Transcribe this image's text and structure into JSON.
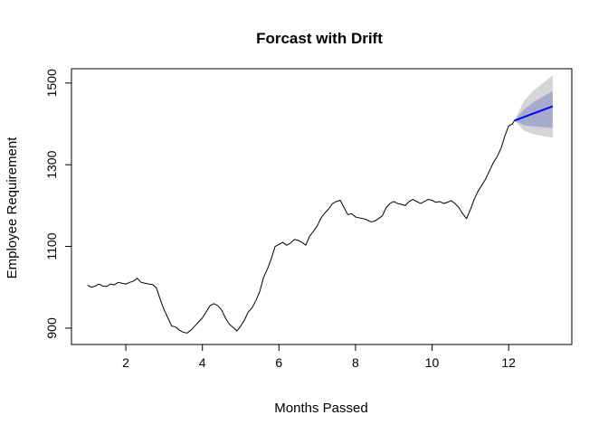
{
  "chart_data": {
    "type": "line",
    "title": "Forcast with Drift",
    "xlabel": "Months Passed",
    "ylabel": "Employee Requirement",
    "xlim": [
      0.58,
      13.65
    ],
    "ylim": [
      860,
      1535
    ],
    "x_ticks": [
      2,
      4,
      6,
      8,
      10,
      12
    ],
    "y_ticks": [
      900,
      1100,
      1300,
      1500
    ],
    "grid": false,
    "colors": {
      "history": "#000000",
      "forecast": "#0000ff",
      "band80": "#a6abcc",
      "band95": "#d5d5d8"
    },
    "series": [
      {
        "role": "history",
        "points": [
          [
            1.0,
            1005
          ],
          [
            1.1,
            1000
          ],
          [
            1.2,
            1003
          ],
          [
            1.3,
            1008
          ],
          [
            1.4,
            1003
          ],
          [
            1.5,
            1002
          ],
          [
            1.6,
            1008
          ],
          [
            1.7,
            1006
          ],
          [
            1.8,
            1012
          ],
          [
            1.9,
            1010
          ],
          [
            2.0,
            1008
          ],
          [
            2.1,
            1012
          ],
          [
            2.2,
            1015
          ],
          [
            2.3,
            1022
          ],
          [
            2.4,
            1012
          ],
          [
            2.5,
            1010
          ],
          [
            2.6,
            1008
          ],
          [
            2.7,
            1007
          ],
          [
            2.8,
            998
          ],
          [
            2.9,
            970
          ],
          [
            3.0,
            945
          ],
          [
            3.1,
            925
          ],
          [
            3.2,
            905
          ],
          [
            3.3,
            903
          ],
          [
            3.4,
            895
          ],
          [
            3.5,
            890
          ],
          [
            3.6,
            888
          ],
          [
            3.7,
            895
          ],
          [
            3.8,
            905
          ],
          [
            3.9,
            915
          ],
          [
            4.0,
            925
          ],
          [
            4.1,
            940
          ],
          [
            4.2,
            955
          ],
          [
            4.3,
            960
          ],
          [
            4.4,
            955
          ],
          [
            4.5,
            945
          ],
          [
            4.6,
            925
          ],
          [
            4.7,
            910
          ],
          [
            4.8,
            902
          ],
          [
            4.9,
            893
          ],
          [
            5.0,
            905
          ],
          [
            5.1,
            920
          ],
          [
            5.2,
            940
          ],
          [
            5.3,
            950
          ],
          [
            5.4,
            968
          ],
          [
            5.5,
            990
          ],
          [
            5.6,
            1025
          ],
          [
            5.7,
            1045
          ],
          [
            5.8,
            1070
          ],
          [
            5.9,
            1100
          ],
          [
            6.0,
            1105
          ],
          [
            6.1,
            1110
          ],
          [
            6.2,
            1103
          ],
          [
            6.3,
            1108
          ],
          [
            6.4,
            1117
          ],
          [
            6.5,
            1115
          ],
          [
            6.6,
            1110
          ],
          [
            6.7,
            1103
          ],
          [
            6.8,
            1125
          ],
          [
            6.9,
            1137
          ],
          [
            7.0,
            1150
          ],
          [
            7.1,
            1170
          ],
          [
            7.2,
            1182
          ],
          [
            7.3,
            1192
          ],
          [
            7.4,
            1205
          ],
          [
            7.5,
            1210
          ],
          [
            7.6,
            1213
          ],
          [
            7.7,
            1195
          ],
          [
            7.8,
            1178
          ],
          [
            7.9,
            1180
          ],
          [
            8.0,
            1172
          ],
          [
            8.1,
            1170
          ],
          [
            8.2,
            1168
          ],
          [
            8.3,
            1165
          ],
          [
            8.4,
            1160
          ],
          [
            8.5,
            1162
          ],
          [
            8.6,
            1168
          ],
          [
            8.7,
            1175
          ],
          [
            8.8,
            1195
          ],
          [
            8.9,
            1205
          ],
          [
            9.0,
            1210
          ],
          [
            9.1,
            1205
          ],
          [
            9.2,
            1203
          ],
          [
            9.3,
            1200
          ],
          [
            9.4,
            1210
          ],
          [
            9.5,
            1215
          ],
          [
            9.6,
            1210
          ],
          [
            9.7,
            1205
          ],
          [
            9.8,
            1210
          ],
          [
            9.9,
            1215
          ],
          [
            10.0,
            1213
          ],
          [
            10.1,
            1208
          ],
          [
            10.2,
            1210
          ],
          [
            10.3,
            1205
          ],
          [
            10.4,
            1208
          ],
          [
            10.5,
            1212
          ],
          [
            10.6,
            1205
          ],
          [
            10.7,
            1195
          ],
          [
            10.8,
            1180
          ],
          [
            10.9,
            1168
          ],
          [
            11.0,
            1190
          ],
          [
            11.1,
            1215
          ],
          [
            11.2,
            1235
          ],
          [
            11.3,
            1250
          ],
          [
            11.4,
            1265
          ],
          [
            11.5,
            1285
          ],
          [
            11.6,
            1305
          ],
          [
            11.7,
            1320
          ],
          [
            11.8,
            1340
          ],
          [
            11.9,
            1370
          ],
          [
            12.0,
            1395
          ],
          [
            12.1,
            1400
          ],
          [
            12.15,
            1408
          ]
        ]
      },
      {
        "role": "forecast",
        "points": [
          [
            12.15,
            1408
          ],
          [
            13.15,
            1443
          ]
        ]
      }
    ],
    "forecast_band_80": {
      "x": [
        12.15,
        12.4,
        12.65,
        12.9,
        13.15
      ],
      "lower": [
        1408,
        1397,
        1394,
        1392,
        1390
      ],
      "upper": [
        1408,
        1435,
        1453,
        1467,
        1480
      ]
    },
    "forecast_band_95": {
      "x": [
        12.15,
        12.4,
        12.65,
        12.9,
        13.15
      ],
      "lower": [
        1408,
        1383,
        1375,
        1370,
        1366
      ],
      "upper": [
        1408,
        1456,
        1482,
        1500,
        1519
      ]
    }
  }
}
